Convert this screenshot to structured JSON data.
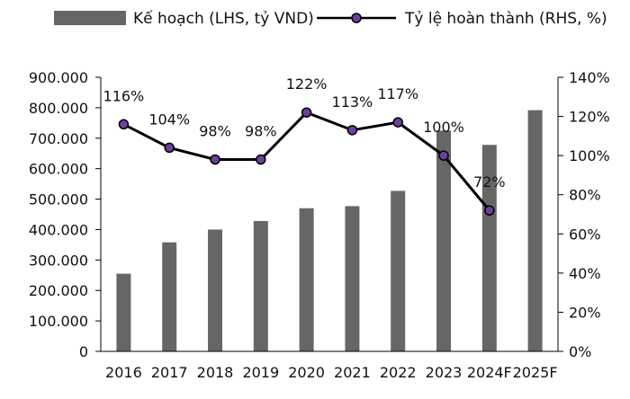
{
  "chart_data": {
    "type": "bar+line",
    "title": "",
    "categories": [
      "2016",
      "2017",
      "2018",
      "2019",
      "2020",
      "2021",
      "2022",
      "2023",
      "2024F",
      "2025F"
    ],
    "series": [
      {
        "name": "Kế hoạch (LHS, tỷ VND)",
        "type": "bar",
        "axis": "left",
        "color": "#666666",
        "values": [
          255000,
          358000,
          400000,
          428000,
          470000,
          477000,
          527000,
          725000,
          678000,
          792000
        ]
      },
      {
        "name": "Tỷ lệ hoàn thành (RHS, %)",
        "type": "line",
        "axis": "right",
        "color": "#000000",
        "marker_color": "#6b3fa0",
        "values": [
          116,
          104,
          98,
          98,
          122,
          113,
          117,
          100,
          72,
          null
        ],
        "labels": [
          "116%",
          "104%",
          "98%",
          "98%",
          "122%",
          "113%",
          "117%",
          "100%",
          "72%",
          ""
        ]
      }
    ],
    "y_left": {
      "min": 0,
      "max": 900000,
      "step": 100000,
      "tick_labels": [
        "0",
        "100.000",
        "200.000",
        "300.000",
        "400.000",
        "500.000",
        "600.000",
        "700.000",
        "800.000",
        "900.000"
      ]
    },
    "y_right": {
      "min": 0,
      "max": 140,
      "step": 20,
      "tick_labels": [
        "0%",
        "20%",
        "40%",
        "60%",
        "80%",
        "100%",
        "120%",
        "140%"
      ]
    },
    "legend_position": "top",
    "grid": false
  }
}
